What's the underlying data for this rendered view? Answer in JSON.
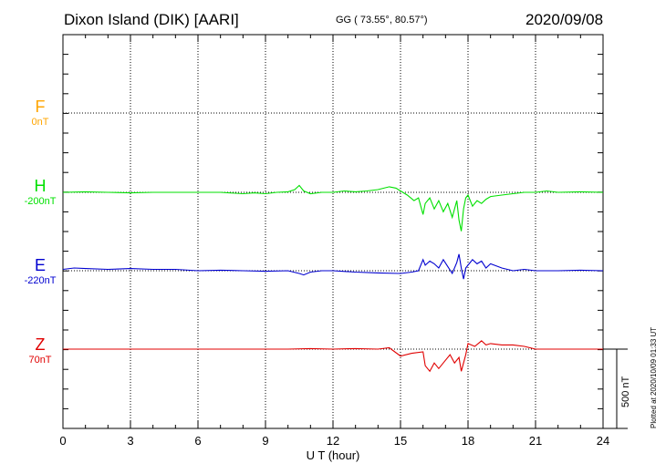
{
  "header": {
    "station": "Dixon Island (DIK)  [AARI]",
    "coords": "GG ( 73.55°,  80.57°)",
    "date": "2020/09/08"
  },
  "footer": {
    "plotted": "Plotted at 2020/10/09 01:33 UT"
  },
  "chart_data": {
    "type": "line",
    "xlabel": "U T (hour)",
    "xlim": [
      0,
      24
    ],
    "xticks": [
      0,
      3,
      6,
      9,
      12,
      15,
      18,
      21,
      24
    ],
    "scale_bar": {
      "label": "500 nT",
      "value_nT": 500
    },
    "grid": true,
    "series": [
      {
        "name": "F",
        "baseline": "0nT",
        "color": "#ffa500",
        "x": [],
        "y": []
      },
      {
        "name": "H",
        "baseline": "-200nT",
        "color": "#00e000",
        "x": [
          0,
          1,
          2,
          3,
          4,
          5,
          6,
          7,
          8,
          8.5,
          9,
          9.5,
          10,
          10.3,
          10.5,
          10.7,
          11,
          11.5,
          12,
          12.5,
          13,
          13.5,
          14,
          14.5,
          14.8,
          15,
          15.3,
          15.6,
          15.8,
          16,
          16.1,
          16.3,
          16.5,
          16.7,
          16.9,
          17.1,
          17.3,
          17.5,
          17.6,
          17.7,
          17.8,
          17.9,
          18,
          18.2,
          18.4,
          18.6,
          18.8,
          19,
          19.5,
          20,
          20.5,
          21,
          21.5,
          22,
          23,
          24
        ],
        "y": [
          0,
          2,
          0,
          -2,
          0,
          0,
          0,
          0,
          -5,
          -2,
          -5,
          0,
          2,
          10,
          25,
          5,
          -5,
          0,
          0,
          5,
          2,
          5,
          10,
          20,
          15,
          5,
          -10,
          -30,
          -20,
          -80,
          -40,
          -20,
          -60,
          -30,
          -70,
          -40,
          -90,
          -30,
          -100,
          -140,
          -60,
          -20,
          -10,
          -50,
          -30,
          -40,
          -25,
          -15,
          -10,
          -5,
          0,
          0,
          5,
          0,
          2,
          0
        ]
      },
      {
        "name": "E",
        "baseline": "-220nT",
        "color": "#0000d0",
        "x": [
          0,
          0.5,
          1,
          2,
          3,
          4,
          5,
          6,
          7,
          8,
          9,
          10,
          10.5,
          10.7,
          11,
          11.5,
          12,
          13,
          14,
          15,
          15.5,
          15.8,
          16,
          16.1,
          16.3,
          16.5,
          16.7,
          16.9,
          17.1,
          17.3,
          17.5,
          17.6,
          17.7,
          17.8,
          17.9,
          18,
          18.2,
          18.4,
          18.6,
          18.8,
          19,
          19.5,
          20,
          20.5,
          21,
          22,
          23,
          24
        ],
        "y": [
          5,
          10,
          8,
          5,
          8,
          5,
          5,
          0,
          2,
          0,
          -2,
          0,
          -10,
          -15,
          -5,
          0,
          0,
          -5,
          -8,
          -10,
          -5,
          0,
          40,
          20,
          35,
          25,
          10,
          40,
          15,
          -10,
          30,
          60,
          10,
          -30,
          10,
          20,
          40,
          25,
          35,
          10,
          25,
          10,
          0,
          5,
          0,
          0,
          2,
          0
        ]
      },
      {
        "name": "Z",
        "baseline": "70nT",
        "color": "#e00000",
        "x": [
          0,
          1,
          2,
          3,
          4,
          5,
          6,
          7,
          8,
          9,
          10,
          11,
          12,
          13,
          14,
          14.5,
          15,
          15.5,
          16,
          16.1,
          16.3,
          16.5,
          16.7,
          17,
          17.2,
          17.4,
          17.6,
          17.7,
          17.8,
          17.9,
          18,
          18.3,
          18.6,
          18.8,
          19,
          19.5,
          20,
          20.5,
          21,
          22,
          23,
          24
        ],
        "y": [
          0,
          0,
          0,
          0,
          0,
          0,
          0,
          0,
          0,
          0,
          0,
          2,
          0,
          2,
          0,
          5,
          -25,
          -15,
          -10,
          -60,
          -80,
          -50,
          -70,
          -40,
          -20,
          -50,
          -30,
          -80,
          -50,
          -20,
          20,
          10,
          30,
          15,
          20,
          15,
          15,
          10,
          0,
          0,
          0,
          0
        ]
      }
    ]
  }
}
